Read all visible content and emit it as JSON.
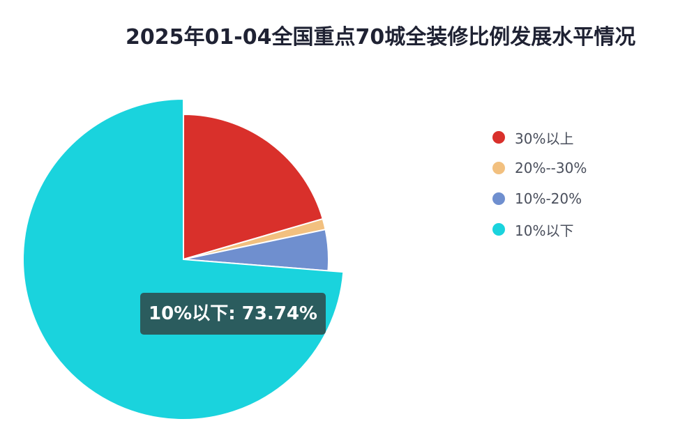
{
  "chart_data": {
    "type": "pie",
    "title": "2025年01-04全国重点70城全装修比例发展水平情况",
    "categories": [
      "30%以上",
      "20%--30%",
      "10%-20%",
      "10%以下"
    ],
    "values": [
      20.5,
      1.2,
      4.56,
      73.74
    ],
    "unit": "%",
    "colors": [
      "#d9302b",
      "#f2c07f",
      "#6f8fcf",
      "#1ad3dd"
    ],
    "legend_position": "right",
    "highlighted": "10%以下",
    "tooltip_text": "10%以下: 73.74%"
  }
}
